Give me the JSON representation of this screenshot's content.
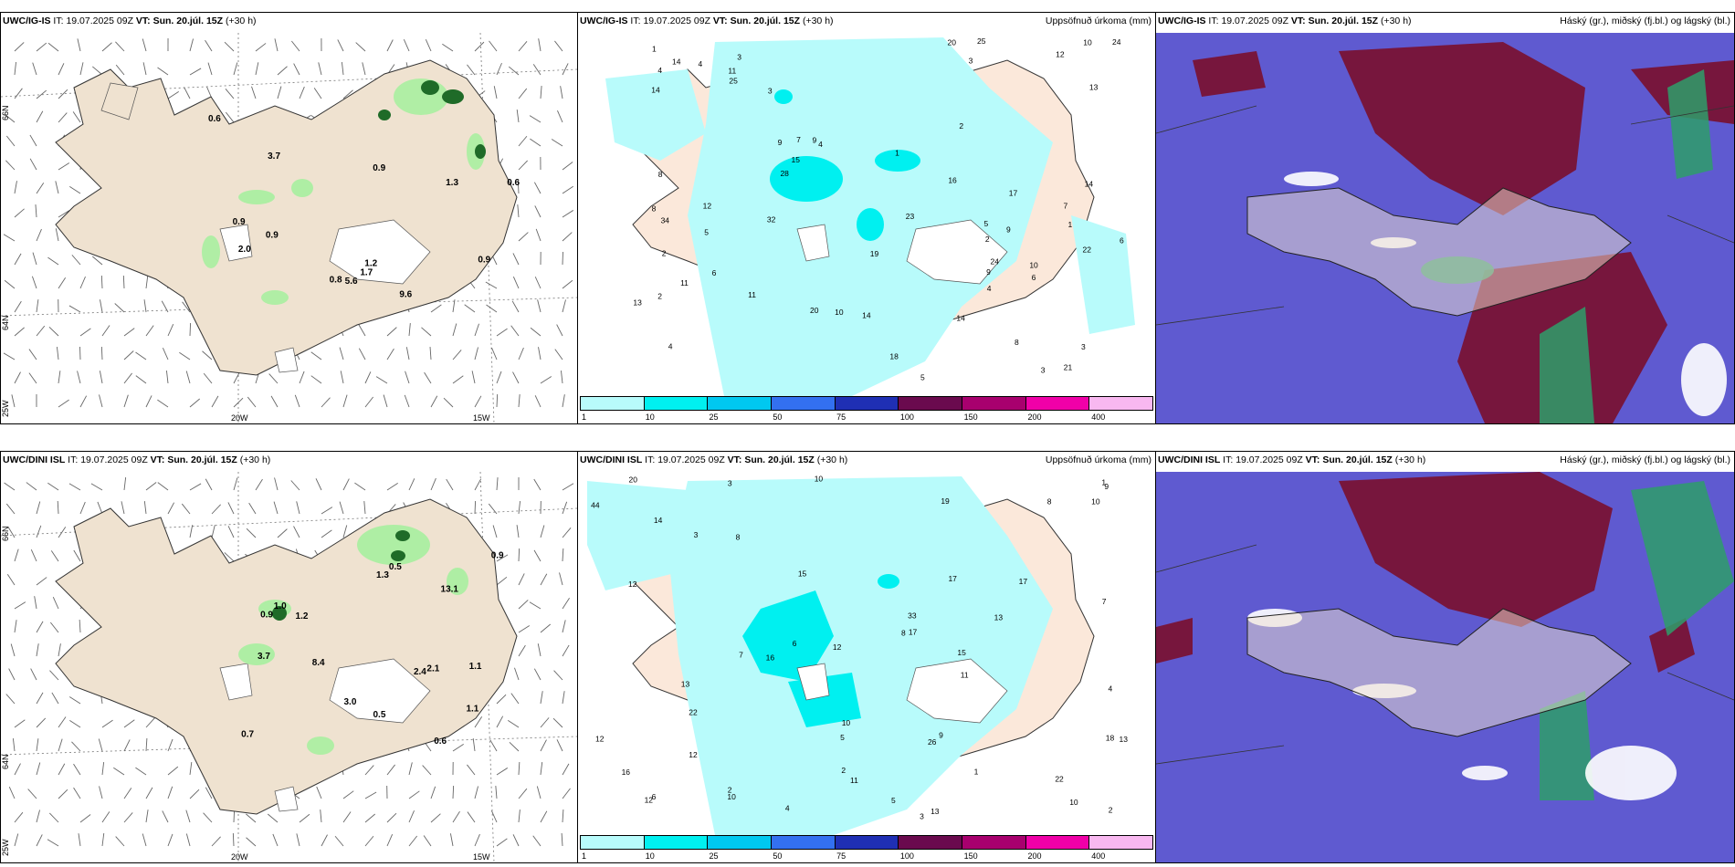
{
  "rows": [
    {
      "model": "UWC/IG-IS",
      "it_label": "IT:",
      "it_value": "19.07.2025 09Z",
      "vt_label": "VT:",
      "vt_value": "Sun. 20.júl. 15Z",
      "lead": "(+30 h)",
      "wind_values": [
        "0.8",
        "1.2",
        "0.9",
        "0.6",
        "0.6",
        "2.0",
        "1.7",
        "0.9",
        "1.3",
        "3.7",
        "0.9",
        "0.9",
        "5.6",
        "9.6"
      ],
      "precip_values": [
        "2",
        "1",
        "4",
        "3",
        "4",
        "8",
        "2",
        "3",
        "9",
        "5",
        "14",
        "8",
        "4",
        "3",
        "20",
        "14",
        "19",
        "23",
        "9",
        "6",
        "24",
        "12",
        "28",
        "22",
        "20",
        "11",
        "24",
        "34",
        "25",
        "17",
        "18",
        "14",
        "15",
        "32",
        "7",
        "6",
        "9",
        "12",
        "14",
        "11",
        "13",
        "25",
        "21",
        "10",
        "10",
        "11",
        "13",
        "14",
        "16",
        "8",
        "6",
        "7",
        "10",
        "5",
        "4",
        "3",
        "2",
        "1",
        "5",
        "4",
        "9",
        "3",
        "1",
        "2"
      ]
    },
    {
      "model": "UWC/DINI ISL",
      "it_label": "IT:",
      "it_value": "19.07.2025 09Z",
      "vt_label": "VT:",
      "vt_value": "Sun. 20.júl. 15Z",
      "lead": "(+30 h)",
      "wind_values": [
        "1.3",
        "2.4",
        "8.4",
        "3.7",
        "1.0",
        "3.0",
        "13.1",
        "1.1",
        "0.5",
        "1.1",
        "0.9",
        "0.9",
        "0.6",
        "1.2",
        "0.7",
        "2.1",
        "0.5"
      ],
      "precip_values": [
        "4",
        "3",
        "2",
        "1",
        "3",
        "14",
        "7",
        "10",
        "10",
        "15",
        "8",
        "11",
        "6",
        "5",
        "19",
        "8",
        "12",
        "10",
        "16",
        "44",
        "26",
        "9",
        "33",
        "12",
        "17",
        "13",
        "12",
        "22",
        "20",
        "11",
        "12",
        "13",
        "10",
        "10",
        "12",
        "15",
        "18",
        "16",
        "17",
        "22",
        "17",
        "13",
        "13",
        "6",
        "8",
        "9",
        "4",
        "5",
        "3",
        "2",
        "1",
        "7",
        "2"
      ]
    }
  ],
  "precip_title": "Uppsöfnuð úrkoma (mm)",
  "cloud_title": "Háský (gr.), miðský (fj.bl.) og lágský (bl.)",
  "legend": {
    "ticks": [
      "1",
      "10",
      "25",
      "50",
      "75",
      "100",
      "150",
      "200",
      "400"
    ],
    "colors": [
      "#b8fbfb",
      "#00f0f0",
      "#00c8f0",
      "#3370f0",
      "#1f2fb4",
      "#6a0a4e",
      "#a8006e",
      "#f000a8",
      "#f8b8f0"
    ]
  },
  "wind_axis": {
    "lat_top": "66N",
    "lat_mid": "64N",
    "lon_bottom_left": "25W",
    "lon_20": "20W",
    "lon_15": "15W"
  },
  "colors": {
    "land": "#efe2d0",
    "wind_green": "#a8f0a0",
    "wind_dark": "#1f6b28",
    "precip_fill": "#b8fbfb",
    "cloud_low": "#5f5ad0",
    "cloud_high": "#7a1030",
    "cloud_mid": "#2e9e6a"
  }
}
